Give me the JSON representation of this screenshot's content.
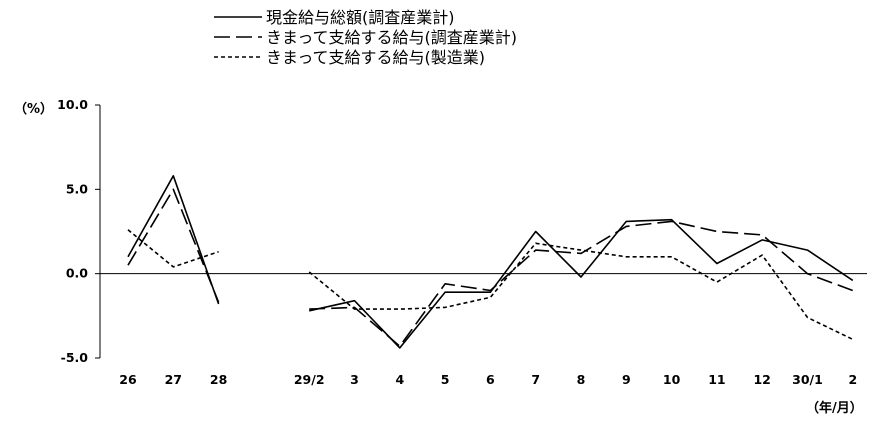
{
  "chart_data": {
    "type": "line",
    "y_unit": "（%）",
    "x_unit": "（年/月）",
    "ylim": [
      -5.0,
      10.0
    ],
    "y_ticks": [
      "10.0",
      "5.0",
      "0.0",
      "-5.0"
    ],
    "y_tick_values": [
      10,
      5,
      0,
      -5
    ],
    "categories": [
      "26",
      "27",
      "28",
      "",
      "29/2",
      "3",
      "4",
      "5",
      "6",
      "7",
      "8",
      "9",
      "10",
      "11",
      "12",
      "30/1",
      "2"
    ],
    "zero_line": true,
    "grid": false,
    "legend_position": "top-center",
    "series": [
      {
        "name": "現金給与総額(調査産業計)",
        "style": "solid",
        "color": "#000000",
        "values": [
          1.0,
          5.8,
          -1.8,
          null,
          -2.2,
          -1.6,
          -4.4,
          -1.1,
          -1.1,
          2.5,
          -0.2,
          3.1,
          3.2,
          0.6,
          2.0,
          1.4,
          -0.4
        ]
      },
      {
        "name": "きまって支給する給与(調査産業計)",
        "style": "longdash",
        "color": "#000000",
        "values": [
          0.5,
          5.0,
          -1.7,
          null,
          -2.1,
          -2.0,
          -4.3,
          -0.6,
          -1.0,
          1.4,
          1.2,
          2.8,
          3.1,
          2.5,
          2.3,
          0.0,
          -1.0
        ]
      },
      {
        "name": "きまって支給する給与(製造業)",
        "style": "shortdash",
        "color": "#000000",
        "values": [
          2.6,
          0.4,
          1.3,
          null,
          0.1,
          -2.1,
          -2.1,
          -2.0,
          -1.4,
          1.8,
          1.4,
          1.0,
          1.0,
          -0.5,
          1.1,
          -2.6,
          -3.9
        ]
      }
    ]
  }
}
